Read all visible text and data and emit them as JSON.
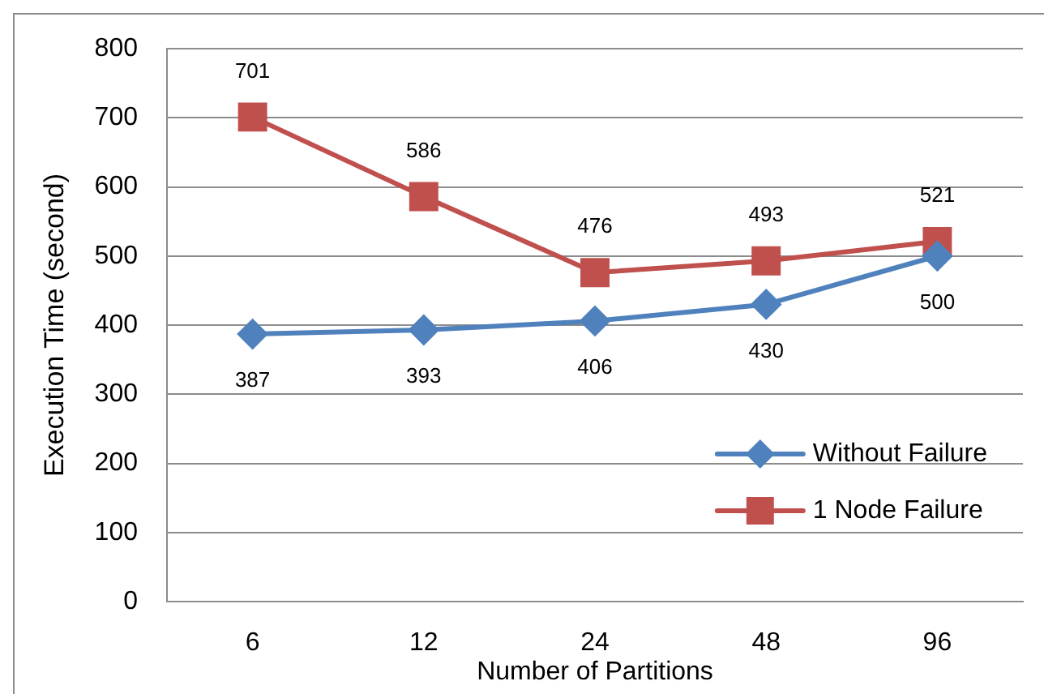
{
  "chart_data": {
    "type": "line",
    "xlabel": "Number of Partitions",
    "ylabel": "Execution Time (second)",
    "categories": [
      "6",
      "12",
      "24",
      "48",
      "96"
    ],
    "series": [
      {
        "name": "Without Failure",
        "color": "#4f81bd",
        "values": [
          387,
          393,
          406,
          430,
          500
        ],
        "marker": "diamond"
      },
      {
        "name": "1 Node Failure",
        "color": "#c0504d",
        "values": [
          701,
          586,
          476,
          493,
          521
        ],
        "marker": "square"
      }
    ],
    "ylim": [
      0,
      800
    ],
    "yticks": [
      0,
      100,
      200,
      300,
      400,
      500,
      600,
      700,
      800
    ],
    "grid": "y",
    "legend": "bottom right",
    "data_labels": true,
    "line_style": "solid"
  }
}
